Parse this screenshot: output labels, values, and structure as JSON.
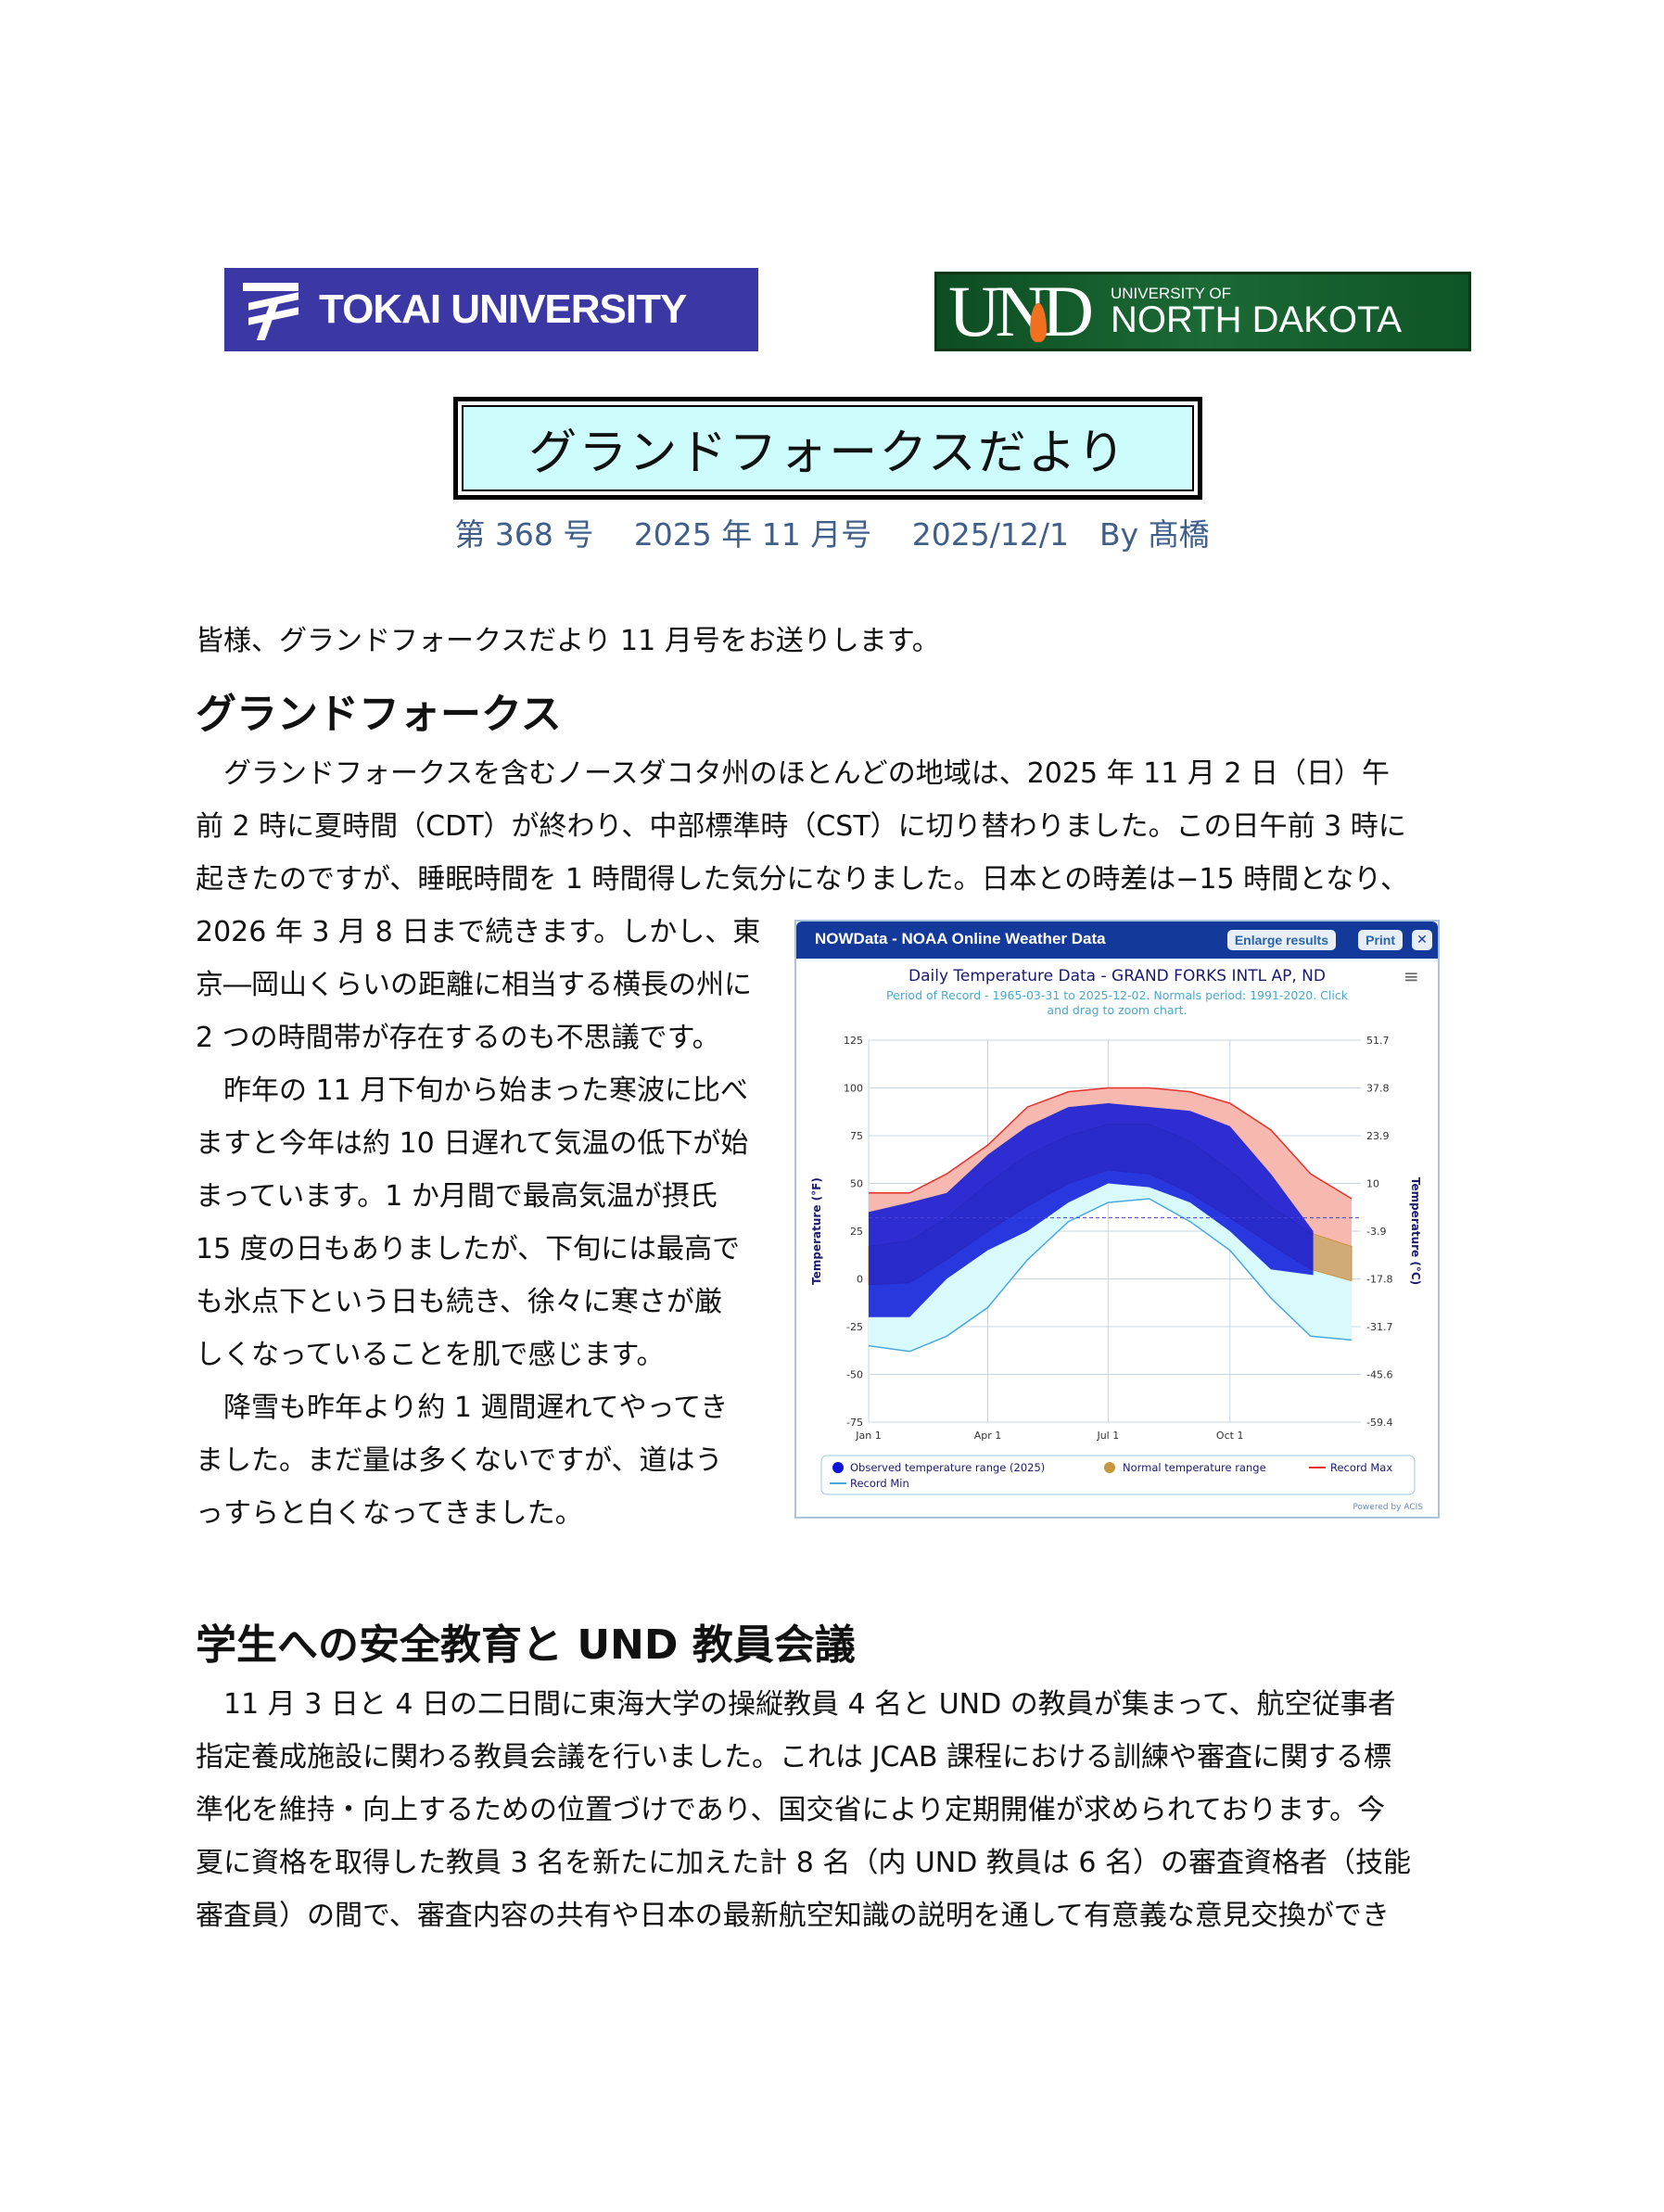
{
  "logos": {
    "tokai": "TOKAI UNIVERSITY",
    "und_mark": "UND",
    "und_small": "UNIVERSITY OF",
    "und_large": "NORTH DAKOTA"
  },
  "title": "グランドフォークスだより",
  "subtitle": "第 368 号　 2025 年 11 月号　 2025/12/1　By 髙橋",
  "greeting": "皆様、グランドフォークスだより 11 月号をお送りします。",
  "section1": {
    "heading": "グランドフォークス",
    "lines": [
      "　グランドフォークスを含むノースダコタ州のほとんどの地域は、2025 年 11 月 2 日（日）午",
      "前 2 時に夏時間（CDT）が終わり、中部標準時（CST）に切り替わりました。この日午前 3 時に",
      "起きたのですが、睡眠時間を 1 時間得した気分になりました。日本との時差は−15 時間となり、",
      "2026 年 3 月 8 日まで続きます。しかし、東",
      "京―岡山くらいの距離に相当する横長の州に",
      "2 つの時間帯が存在するのも不思議です。",
      "　昨年の 11 月下旬から始まった寒波に比べ",
      "ますと今年は約 10 日遅れて気温の低下が始",
      "まっています。1 か月間で最高気温が摂氏",
      "15 度の日もありましたが、下旬には最高で",
      "も氷点下という日も続き、徐々に寒さが厳",
      "しくなっていることを肌で感じます。",
      "　降雪も昨年より約 1 週間遅れてやってき",
      "ました。まだ量は多くないですが、道はう",
      "っすらと白くなってきました。"
    ]
  },
  "section2": {
    "heading": "学生への安全教育と UND 教員会議",
    "lines": [
      "　11 月 3 日と 4 日の二日間に東海大学の操縦教員 4 名と UND の教員が集まって、航空従事者",
      "指定養成施設に関わる教員会議を行いました。これは JCAB 課程における訓練や審査に関する標",
      "準化を維持・向上するための位置づけであり、国交省により定期開催が求められております。今",
      "夏に資格を取得した教員 3 名を新たに加えた計 8 名（内 UND 教員は 6 名）の審査資格者（技能",
      "審査員）の間で、審査内容の共有や日本の最新航空知識の説明を通して有意義な意見交換ができ"
    ]
  },
  "panel": {
    "title": "NOWData - NOAA Online Weather Data",
    "enlarge": "Enlarge results",
    "print": "Print",
    "close_icon": "close-icon",
    "menu_icon": "hamburger-menu-icon",
    "powered": "Powered by ACIS"
  },
  "chart_data": {
    "type": "area",
    "title": "Daily Temperature Data - GRAND FORKS INTL AP, ND",
    "subtitle_lines": [
      "Period of Record - 1965-03-31 to 2025-12-02. Normals period: 1991-2020. Click",
      "and drag to zoom chart."
    ],
    "ylabel": "Temperature (°F)",
    "ylabel_right": "Temperature (°C)",
    "ylim": [
      -75,
      125
    ],
    "yticks": [
      125,
      100,
      75,
      50,
      25,
      0,
      -25,
      -50,
      -75
    ],
    "yticks_right": [
      "51.7",
      "37.8",
      "23.9",
      "10",
      "-3.9",
      "-17.8",
      "-31.7",
      "-45.6",
      "-59.4"
    ],
    "xlim_day_of_year": [
      0,
      372
    ],
    "xticks": [
      {
        "label": "Jan 1",
        "day": 0
      },
      {
        "label": "Apr 1",
        "day": 90
      },
      {
        "label": "Jul 1",
        "day": 181
      },
      {
        "label": "Oct 1",
        "day": 273
      }
    ],
    "freezing_line": 32,
    "x_days": [
      0,
      31,
      59,
      90,
      120,
      151,
      181,
      212,
      243,
      273,
      304,
      334,
      365
    ],
    "series": [
      {
        "name": "Record Max",
        "color": "#e8302a",
        "values": [
          45,
          45,
          55,
          70,
          90,
          98,
          100,
          100,
          98,
          92,
          78,
          55,
          42
        ]
      },
      {
        "name": "Record Min",
        "color": "#4aa8e0",
        "values": [
          -35,
          -38,
          -30,
          -15,
          10,
          30,
          40,
          42,
          30,
          15,
          -10,
          -30,
          -32
        ]
      },
      {
        "name": "Normal temperature range",
        "color": "#c8963c",
        "high": [
          17,
          20,
          32,
          50,
          65,
          75,
          81,
          81,
          72,
          57,
          38,
          24,
          17
        ],
        "low": [
          -3,
          -2,
          10,
          25,
          38,
          50,
          57,
          55,
          45,
          32,
          18,
          5,
          -1
        ]
      },
      {
        "name": "Observed temperature range (2025)",
        "color": "#0a14d8",
        "x_days": [
          0,
          31,
          59,
          90,
          120,
          151,
          181,
          212,
          243,
          273,
          304,
          336
        ],
        "high": [
          35,
          40,
          45,
          65,
          80,
          90,
          92,
          90,
          88,
          80,
          55,
          25
        ],
        "low": [
          -20,
          -20,
          0,
          15,
          25,
          40,
          50,
          48,
          40,
          25,
          5,
          2
        ]
      }
    ],
    "legend": [
      "Observed temperature range (2025)",
      "Normal temperature range",
      "Record Max",
      "Record Min"
    ],
    "legend_placement": "bottom"
  }
}
